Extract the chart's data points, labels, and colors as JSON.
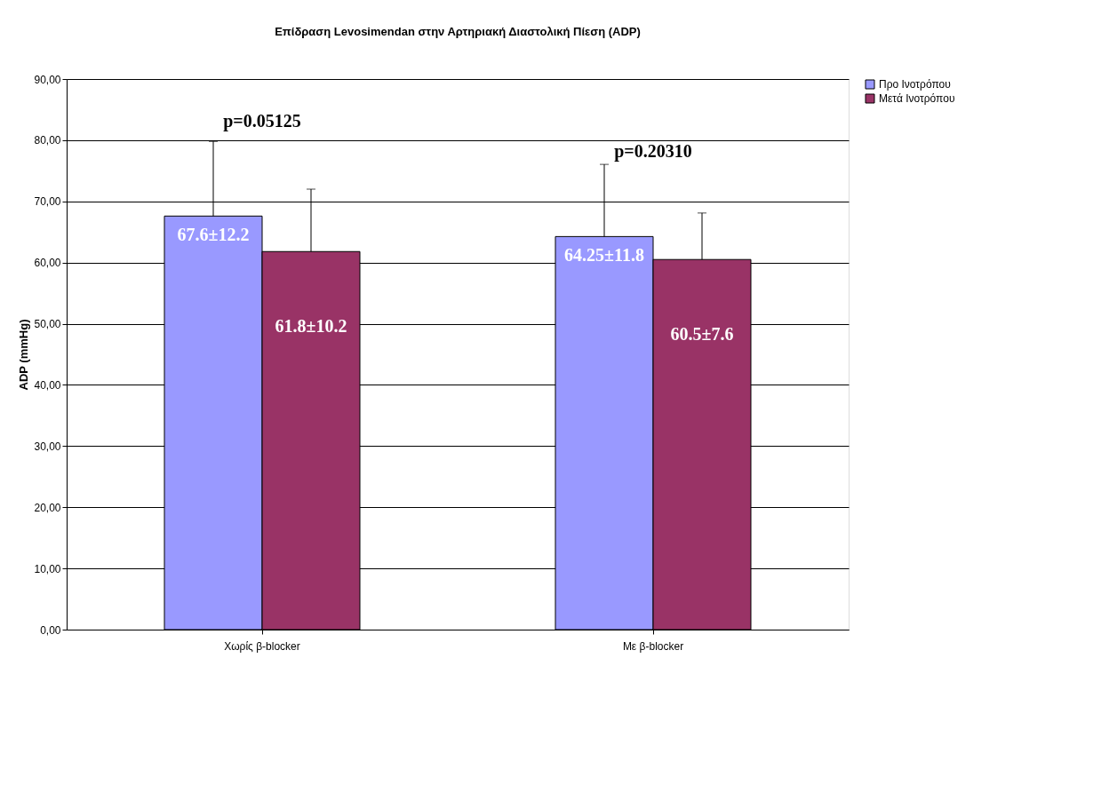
{
  "chart_data": {
    "type": "bar",
    "title": "Επίδραση Levosimendan στην Αρτηριακή Διαστολική Πίεση (ADP)",
    "ylabel": "ADP (mmHg)",
    "categories": [
      "Χωρίς β-blocker",
      "Με β-blocker"
    ],
    "series": [
      {
        "name": "Προ Ινοτρόπου",
        "color": "#9999ff",
        "values": [
          67.6,
          64.25
        ],
        "errors": [
          [
            67.6,
            79.8
          ],
          [
            64.25,
            76.05
          ]
        ],
        "value_labels": [
          "67.6±12.2",
          "64.25±11.8"
        ]
      },
      {
        "name": "Μετά Ινοτρόπου",
        "color": "#993366",
        "values": [
          61.8,
          60.5
        ],
        "errors": [
          [
            61.8,
            72.0
          ],
          [
            60.5,
            68.1
          ]
        ],
        "value_labels": [
          "61.8±10.2",
          "60.5±7.6"
        ]
      }
    ],
    "ylim": [
      0,
      90
    ],
    "yticks": [
      {
        "value": 0,
        "label": "0,00"
      },
      {
        "value": 10,
        "label": "10,00"
      },
      {
        "value": 20,
        "label": "20,00"
      },
      {
        "value": 30,
        "label": "30,00"
      },
      {
        "value": 40,
        "label": "40,00"
      },
      {
        "value": 50,
        "label": "50,00"
      },
      {
        "value": 60,
        "label": "60,00"
      },
      {
        "value": 70,
        "label": "70,00"
      },
      {
        "value": 80,
        "label": "80,00"
      },
      {
        "value": 90,
        "label": "90,00"
      }
    ],
    "annotations": [
      "p=0.05125",
      "p=0.20310"
    ],
    "grid": "y",
    "legend": "right"
  }
}
